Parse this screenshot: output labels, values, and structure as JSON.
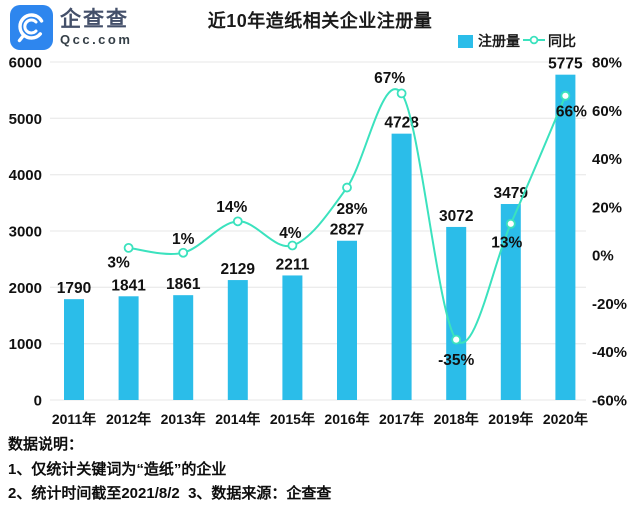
{
  "logo": {
    "brand_cn": "企查查",
    "brand_domain": "Qcc.com"
  },
  "title": "近10年造纸相关企业注册量",
  "legend": [
    {
      "type": "bar",
      "label": "注册量"
    },
    {
      "type": "line",
      "label": "同比"
    }
  ],
  "colors": {
    "bar": "#2BBDE9",
    "line": "#3BE2BE",
    "grid": "#ECECEC",
    "text": "#111111",
    "logo_blue": "#2E86EE"
  },
  "chart_data": {
    "type": "bar",
    "title": "近10年造纸相关企业注册量",
    "categories": [
      "2011年",
      "2012年",
      "2013年",
      "2014年",
      "2015年",
      "2016年",
      "2017年",
      "2018年",
      "2019年",
      "2020年"
    ],
    "series": [
      {
        "name": "注册量",
        "type": "bar",
        "axis": "left",
        "values": [
          1790,
          1841,
          1861,
          2129,
          2211,
          2827,
          4728,
          3072,
          3479,
          5775
        ]
      },
      {
        "name": "同比",
        "type": "line",
        "axis": "right",
        "unit": "%",
        "values": [
          null,
          3,
          1,
          14,
          4,
          28,
          67,
          -35,
          13,
          66
        ]
      }
    ],
    "left_axis": {
      "min": 0,
      "max": 6000,
      "ticks": [
        6000,
        5000,
        4000,
        3000,
        2000,
        1000,
        0
      ]
    },
    "right_axis": {
      "min": -60,
      "max": 80,
      "unit": "%",
      "ticks": [
        80,
        60,
        40,
        20,
        0,
        -20,
        -40,
        -60
      ]
    },
    "grid": true,
    "legend_position": "top-right"
  },
  "footer": {
    "heading": "数据说明：",
    "note1": "1、仅统计关键词为“造纸”的企业",
    "note2": "2、统计时间截至2021/8/2  3、数据来源：企查查"
  }
}
